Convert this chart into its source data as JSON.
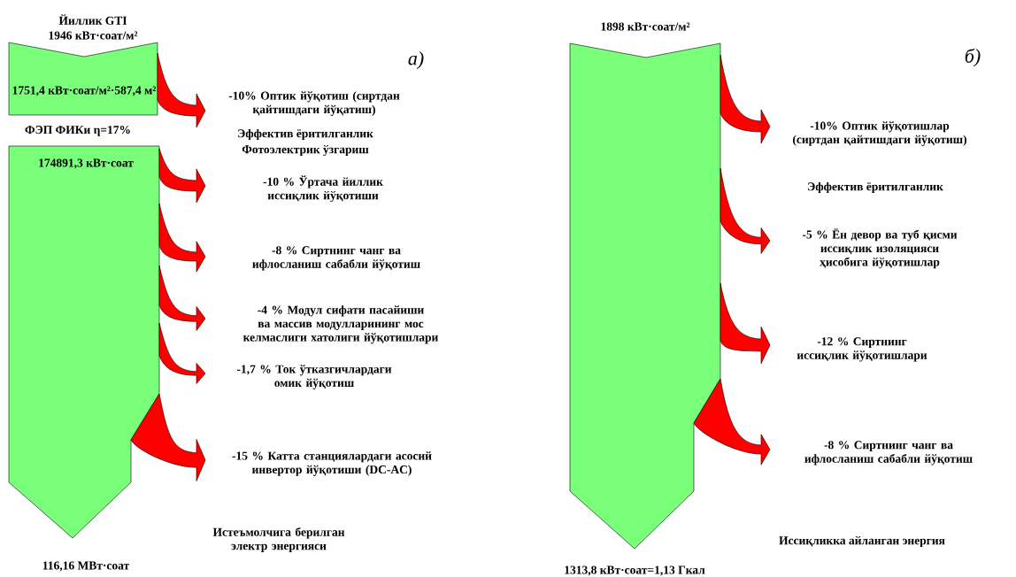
{
  "chart_data": [
    {
      "type": "other",
      "title": "Йиллик GTI",
      "subtitle": "1946 кВт·соат/м²",
      "categories": [
        "Оптик йўқотиш (сиртдан қайтишдаги йўқатиш)",
        "Ўртача йиллик иссиқлик йўқотиши",
        "Сиртнинг чанг ва ифлосланиш сабабли йўқотиш",
        "Модул сифати пасайиши ва массив модулларининг мос келмаслиги хатолиги йўқотишлари",
        "Ток ўтказгичлардаги омик йўқотиш",
        "Катта станциялардаги асосий инвертор йўқотиши (DC-AC)"
      ],
      "values": [
        -10,
        -10,
        -8,
        -4,
        -1.7,
        -15
      ],
      "value_labels": [
        "-10%",
        "-10 %",
        "-8 %",
        "-4 %",
        "-1,7 %",
        "-15 %"
      ],
      "colors": [
        "#ff0000",
        "#ff0000",
        "#ff0000",
        "#ff0000",
        "#ff0000",
        "#ff0000"
      ],
      "annotations": [
        "а)",
        "1751,4 кВт·соат/м²·587,4 м²",
        "ФЭП ФИКи η=17%",
        "Эффектив ёритилганлик",
        "Фотоэлектрик ўзгариш",
        "174891,3 кВт·соат",
        "Истеъмолчига берилган электр энергияси",
        "116,16 МВт·соат"
      ]
    },
    {
      "type": "other",
      "title": "1898 кВт·соат/м²",
      "categories": [
        "Оптик йўқотишлар (сиртдан қайтишдаги йўқотиш)",
        "Ён девор ва туб қисми иссиқлик изоляцияси ҳисобига йўқотишлар",
        "Сиртнинг иссиқлик йўқотишлари",
        "Сиртнинг чанг ва ифлосланиш сабабли йўқотиш"
      ],
      "values": [
        -10,
        -5,
        -12,
        -8
      ],
      "value_labels": [
        "-10%",
        "-5 %",
        "-12 %",
        "-8 %"
      ],
      "colors": [
        "#ff0000",
        "#ff0000",
        "#ff0000",
        "#ff0000"
      ],
      "annotations": [
        "б)",
        "Эффектив ёритилганлик",
        "Иссиқликка айланган энергия",
        "1313,8 кВт·соат=1,13 Гкал"
      ]
    }
  ]
}
